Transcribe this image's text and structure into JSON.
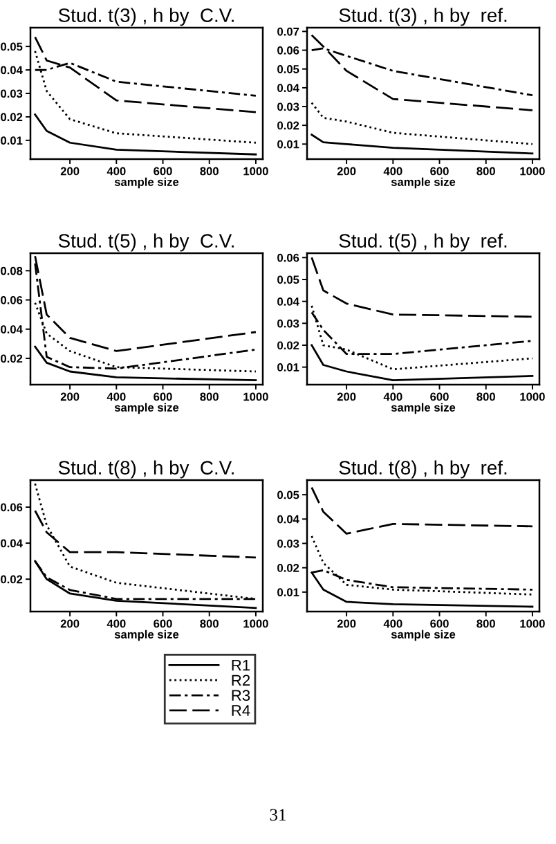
{
  "chart_data": [
    {
      "type": "line",
      "title": "Stud. t(3) , h by  C.V.",
      "xlabel": "sample size",
      "x": [
        50,
        100,
        200,
        400,
        1000
      ],
      "xlim": [
        30,
        1030
      ],
      "xticks": [
        200,
        400,
        600,
        800,
        1000
      ],
      "ylim": [
        0.002,
        0.058
      ],
      "yticks": [
        0.01,
        0.02,
        0.03,
        0.04,
        0.05
      ],
      "grid": false,
      "legend": false,
      "series": [
        {
          "color": "#000000",
          "line_style": "solid",
          "values": [
            0.021,
            0.014,
            0.009,
            0.006,
            0.004
          ]
        },
        {
          "color": "#000000",
          "line_style": "dotted",
          "values": [
            0.048,
            0.031,
            0.019,
            0.013,
            0.009
          ]
        },
        {
          "color": "#000000",
          "line_style": "dashdot",
          "values": [
            0.04,
            0.04,
            0.043,
            0.035,
            0.029
          ]
        },
        {
          "color": "#000000",
          "line_style": "dashed",
          "values": [
            0.054,
            0.044,
            0.041,
            0.027,
            0.022
          ]
        }
      ]
    },
    {
      "type": "line",
      "title": "Stud. t(3) , h by  ref.",
      "xlabel": "sample size",
      "x": [
        50,
        100,
        200,
        400,
        1000
      ],
      "xlim": [
        30,
        1030
      ],
      "xticks": [
        200,
        400,
        600,
        800,
        1000
      ],
      "ylim": [
        0.002,
        0.072
      ],
      "yticks": [
        0.01,
        0.02,
        0.03,
        0.04,
        0.05,
        0.06,
        0.07
      ],
      "grid": false,
      "legend": false,
      "series": [
        {
          "color": "#000000",
          "line_style": "solid",
          "values": [
            0.015,
            0.011,
            0.01,
            0.008,
            0.005
          ]
        },
        {
          "color": "#000000",
          "line_style": "dotted",
          "values": [
            0.032,
            0.024,
            0.022,
            0.016,
            0.01
          ]
        },
        {
          "color": "#000000",
          "line_style": "dashdot",
          "values": [
            0.06,
            0.061,
            0.057,
            0.049,
            0.036
          ]
        },
        {
          "color": "#000000",
          "line_style": "dashed",
          "values": [
            0.068,
            0.062,
            0.049,
            0.034,
            0.028
          ]
        }
      ]
    },
    {
      "type": "line",
      "title": "Stud. t(5) , h by  C.V.",
      "xlabel": "sample size",
      "x": [
        50,
        100,
        200,
        400,
        1000
      ],
      "xlim": [
        30,
        1030
      ],
      "xticks": [
        200,
        400,
        600,
        800,
        1000
      ],
      "ylim": [
        0.002,
        0.092
      ],
      "yticks": [
        0.02,
        0.04,
        0.06,
        0.08
      ],
      "grid": false,
      "legend": false,
      "series": [
        {
          "color": "#000000",
          "line_style": "solid",
          "values": [
            0.028,
            0.017,
            0.011,
            0.007,
            0.005
          ]
        },
        {
          "color": "#000000",
          "line_style": "dotted",
          "values": [
            0.058,
            0.037,
            0.025,
            0.014,
            0.011
          ]
        },
        {
          "color": "#000000",
          "line_style": "dashdot",
          "values": [
            0.085,
            0.021,
            0.014,
            0.013,
            0.026
          ]
        },
        {
          "color": "#000000",
          "line_style": "dashed",
          "values": [
            0.09,
            0.05,
            0.034,
            0.025,
            0.038
          ]
        }
      ]
    },
    {
      "type": "line",
      "title": "Stud. t(5) , h by  ref.",
      "xlabel": "sample size",
      "x": [
        50,
        100,
        200,
        400,
        1000
      ],
      "xlim": [
        30,
        1030
      ],
      "xticks": [
        200,
        400,
        600,
        800,
        1000
      ],
      "ylim": [
        0.002,
        0.062
      ],
      "yticks": [
        0.01,
        0.02,
        0.03,
        0.04,
        0.05,
        0.06
      ],
      "grid": false,
      "legend": false,
      "series": [
        {
          "color": "#000000",
          "line_style": "solid",
          "values": [
            0.02,
            0.011,
            0.008,
            0.004,
            0.006
          ]
        },
        {
          "color": "#000000",
          "line_style": "dotted",
          "values": [
            0.038,
            0.02,
            0.018,
            0.009,
            0.014
          ]
        },
        {
          "color": "#000000",
          "line_style": "dashdot",
          "values": [
            0.035,
            0.027,
            0.016,
            0.016,
            0.022
          ]
        },
        {
          "color": "#000000",
          "line_style": "dashed",
          "values": [
            0.06,
            0.045,
            0.039,
            0.034,
            0.033
          ]
        }
      ]
    },
    {
      "type": "line",
      "title": "Stud. t(8) , h by  C.V.",
      "xlabel": "sample size",
      "x": [
        50,
        100,
        200,
        400,
        1000
      ],
      "xlim": [
        30,
        1030
      ],
      "xticks": [
        200,
        400,
        600,
        800,
        1000
      ],
      "ylim": [
        0.002,
        0.075
      ],
      "yticks": [
        0.02,
        0.04,
        0.06
      ],
      "grid": false,
      "legend": "bottom right",
      "series": [
        {
          "name": "R1",
          "color": "#000000",
          "line_style": "solid",
          "values": [
            0.03,
            0.02,
            0.012,
            0.008,
            0.004
          ]
        },
        {
          "name": "R2",
          "color": "#000000",
          "line_style": "dotted",
          "values": [
            0.073,
            0.05,
            0.027,
            0.018,
            0.009
          ]
        },
        {
          "name": "R3",
          "color": "#000000",
          "line_style": "dashdot",
          "values": [
            0.03,
            0.021,
            0.014,
            0.009,
            0.009
          ]
        },
        {
          "name": "R4",
          "color": "#000000",
          "line_style": "dashed",
          "values": [
            0.058,
            0.046,
            0.035,
            0.035,
            0.032
          ]
        }
      ]
    },
    {
      "type": "line",
      "title": "Stud. t(8) , h by  ref.",
      "xlabel": "sample size",
      "x": [
        50,
        100,
        200,
        400,
        1000
      ],
      "xlim": [
        30,
        1030
      ],
      "xticks": [
        200,
        400,
        600,
        800,
        1000
      ],
      "ylim": [
        0.002,
        0.056
      ],
      "yticks": [
        0.01,
        0.02,
        0.03,
        0.04,
        0.05
      ],
      "grid": false,
      "legend": false,
      "annotations": [
        "31"
      ],
      "series": [
        {
          "color": "#000000",
          "line_style": "solid",
          "values": [
            0.018,
            0.011,
            0.006,
            0.005,
            0.004
          ]
        },
        {
          "color": "#000000",
          "line_style": "dotted",
          "values": [
            0.033,
            0.022,
            0.013,
            0.011,
            0.009
          ]
        },
        {
          "color": "#000000",
          "line_style": "dashdot",
          "values": [
            0.018,
            0.019,
            0.015,
            0.012,
            0.011
          ]
        },
        {
          "color": "#000000",
          "line_style": "dashed",
          "values": [
            0.053,
            0.043,
            0.034,
            0.038,
            0.037
          ]
        }
      ]
    }
  ]
}
